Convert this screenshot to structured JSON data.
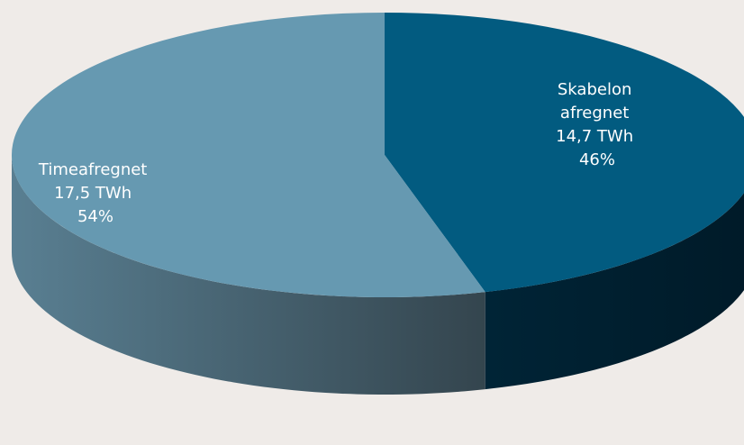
{
  "chart_data": {
    "type": "pie",
    "style": "3d",
    "slices": [
      {
        "key": "skabelon",
        "label_lines": [
          "Skabelon",
          "afregnet",
          "14,7 TWh",
          "46%"
        ],
        "value": 14.7,
        "percent": 46,
        "unit": "TWh",
        "color": "#025b80"
      },
      {
        "key": "time",
        "label_lines": [
          "Timeafregnet",
          "17,5 TWh",
          "54%"
        ],
        "value": 17.5,
        "percent": 54,
        "unit": "TWh",
        "color": "#6699b1"
      }
    ]
  }
}
